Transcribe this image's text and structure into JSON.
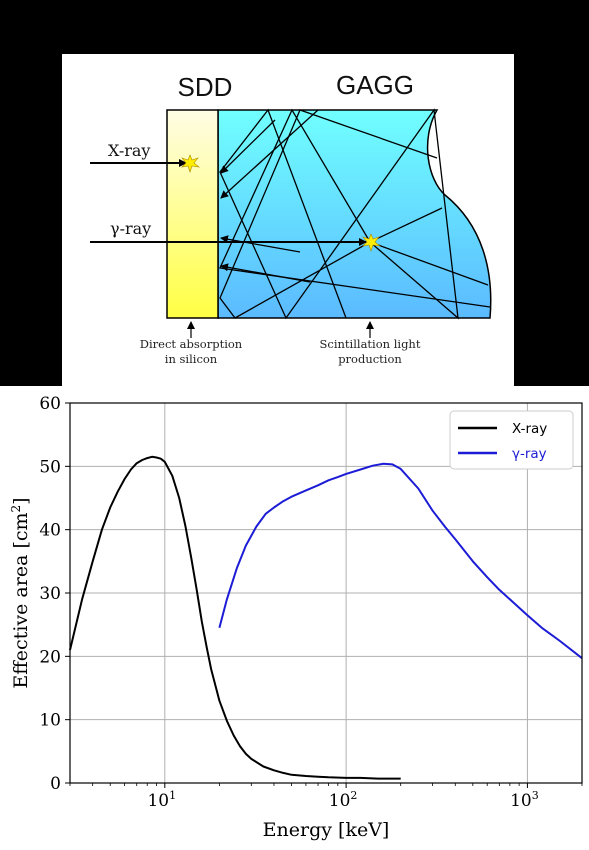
{
  "diagram": {
    "sdd_label": "SDD",
    "gagg_label": "GAGG",
    "xray_label": "X-ray",
    "gamma_label": "γ-ray",
    "direct_line1": "Direct absorption",
    "direct_line2": "in silicon",
    "scint_line1": "Scintillation light",
    "scint_line2": "production",
    "colors": {
      "sdd_top": "#fffde4",
      "sdd_bottom": "#ffff44",
      "gagg_top": "#70ffff",
      "gagg_bottom": "#5bbaff",
      "spark": "#ffee00"
    }
  },
  "chart_data": {
    "type": "line",
    "xlabel": "Energy [keV]",
    "ylabel": "Effective area [cm",
    "ylabel_sup": "2",
    "ylabel_close": "]",
    "xscale": "log",
    "xlim": [
      3,
      2000
    ],
    "ylim": [
      0,
      60
    ],
    "yticks": [
      0,
      10,
      20,
      30,
      40,
      50,
      60
    ],
    "xticks": [
      {
        "value": 10,
        "base": "10",
        "exp": "1"
      },
      {
        "value": 100,
        "base": "10",
        "exp": "2"
      },
      {
        "value": 1000,
        "base": "10",
        "exp": "3"
      }
    ],
    "grid": true,
    "legend_position": "top-right",
    "series": [
      {
        "name": "X-ray",
        "color": "#000000",
        "x": [
          3,
          3.5,
          4,
          4.5,
          5,
          5.5,
          6,
          6.5,
          7,
          7.5,
          8,
          8.5,
          9,
          9.5,
          10,
          11,
          12,
          13,
          14,
          15,
          16,
          17,
          18,
          20,
          22,
          24,
          26,
          28,
          30,
          35,
          40,
          45,
          50,
          60,
          70,
          80,
          100,
          120,
          150,
          200
        ],
        "y": [
          21,
          29,
          35,
          40,
          43.5,
          46,
          48,
          49.5,
          50.5,
          51,
          51.3,
          51.5,
          51.4,
          51.2,
          50.7,
          48.5,
          45,
          40.5,
          35.5,
          30.5,
          25.5,
          21.5,
          18,
          13,
          9.8,
          7.5,
          5.8,
          4.6,
          3.8,
          2.6,
          2,
          1.6,
          1.3,
          1.1,
          1,
          0.9,
          0.8,
          0.8,
          0.7,
          0.7
        ]
      },
      {
        "name": "γ-ray",
        "color": "#1c1cd6",
        "x": [
          20,
          22,
          25,
          28,
          32,
          36,
          40,
          45,
          50,
          60,
          70,
          80,
          90,
          100,
          120,
          140,
          160,
          180,
          200,
          250,
          300,
          350,
          400,
          500,
          600,
          700,
          800,
          1000,
          1200,
          1500,
          2000
        ],
        "y": [
          24.5,
          29,
          34,
          37.5,
          40.5,
          42.5,
          43.5,
          44.5,
          45.2,
          46.2,
          47,
          47.8,
          48.3,
          48.8,
          49.5,
          50.1,
          50.4,
          50.3,
          49.6,
          46.5,
          43,
          40.5,
          38.5,
          35,
          32.5,
          30.5,
          29,
          26.5,
          24.5,
          22.5,
          19.7
        ]
      }
    ]
  }
}
